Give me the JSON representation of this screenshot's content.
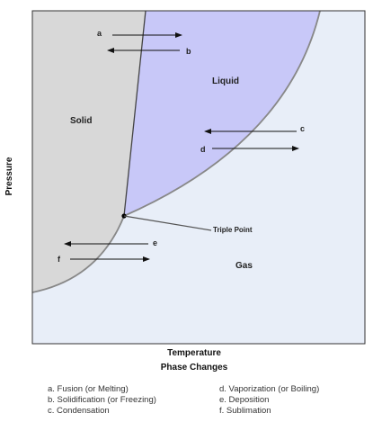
{
  "regions": {
    "solid": "Solid",
    "liquid": "Liquid",
    "gas": "Gas"
  },
  "triple_point_label": "Triple Point",
  "arrows": {
    "a": "a",
    "b": "b",
    "c": "c",
    "d": "d",
    "e": "e",
    "f": "f"
  },
  "axes": {
    "x_label": "Temperature",
    "y_label": "Pressure"
  },
  "caption": "Phase Changes",
  "legend": [
    "a. Fusion (or Melting)",
    "b. Solidification (or Freezing)",
    "c. Condensation",
    "d. Vaporization (or Boiling)",
    "e. Deposition",
    "f. Sublimation"
  ],
  "colors": {
    "solid": "#d8d8d8",
    "liquid": "#c8c8f8",
    "gas": "#e8eef8",
    "frame": "#333333"
  }
}
